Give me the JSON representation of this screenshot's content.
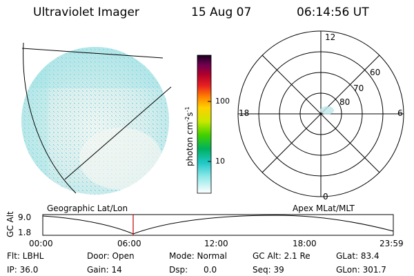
{
  "header": {
    "instrument": "Ultraviolet Imager",
    "date": "15 Aug 07",
    "time": "06:14:56 UT"
  },
  "colorbar": {
    "unit_prefix": "photon cm",
    "exp1": "-2",
    "s": "s",
    "exp2": "-1",
    "ticks": [
      "100",
      "10"
    ]
  },
  "polar_plot": {
    "mlt_labels": [
      "12",
      "18",
      "6",
      "0"
    ],
    "lat_labels": [
      "60",
      "70",
      "80"
    ]
  },
  "orbit_plot": {
    "left_title": "Geographic Lat/Lon",
    "right_title": "Apex  MLat/MLT",
    "axis_label": "GC Alt",
    "y_ticks": [
      "9.0",
      "1.8"
    ],
    "x_ticks": [
      "00:00",
      "06:00",
      "12:00",
      "18:00",
      "23:59"
    ]
  },
  "status": {
    "flt": "Flt: LBHL",
    "door": "Door: Open",
    "mode": "Mode: Normal",
    "gc_alt": "GC Alt: 2.1 Re",
    "glat": "GLat:  83.4",
    "ip": "IP: 36.0",
    "gain": "Gain: 14",
    "dsp": "Dsp:      0.0",
    "seq": "Seq: 39",
    "glon": "GLon: 301.7"
  }
}
